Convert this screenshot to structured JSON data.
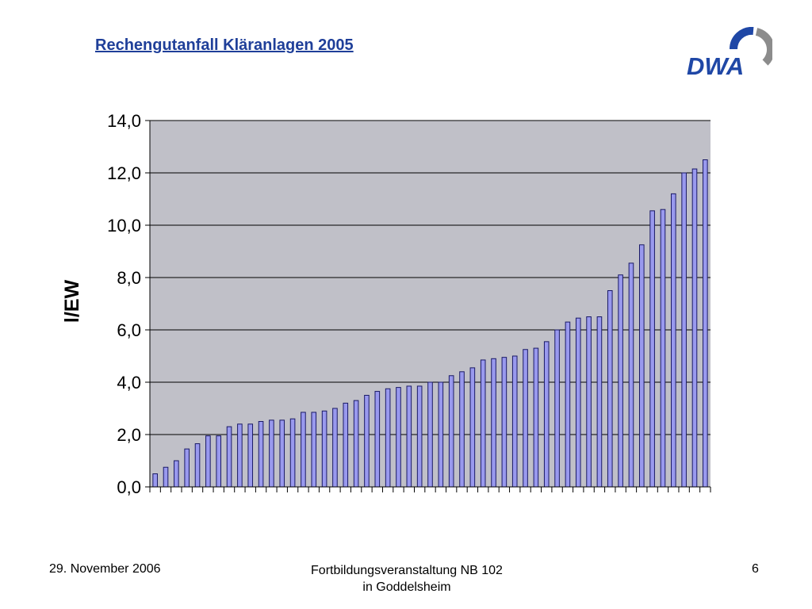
{
  "slide": {
    "title": "Rechengutanfall Kläranlagen 2005",
    "logo_text": "DWA",
    "footer_date": "29. November 2006",
    "footer_event_line1": "Fortbildungsveranstaltung NB 102",
    "footer_event_line2": "in Goddelsheim",
    "page_number": "6"
  },
  "colors": {
    "title": "#1f3f99",
    "logo_blue": "#1f47a6",
    "logo_gray": "#8c8c8c",
    "plot_background": "#c0c0c8",
    "bar_fill": "#9999ee",
    "bar_stroke": "#1a1a66",
    "gridline": "#000000"
  },
  "chart_data": {
    "type": "bar",
    "title": "",
    "xlabel": "",
    "ylabel": "l/EW",
    "ylim": [
      0,
      14
    ],
    "ytick_labels": [
      "0,0",
      "2,0",
      "4,0",
      "6,0",
      "8,0",
      "10,0",
      "12,0",
      "14,0"
    ],
    "grid": true,
    "legend": "none",
    "values": [
      0.5,
      0.75,
      1.0,
      1.45,
      1.65,
      1.95,
      1.95,
      2.3,
      2.4,
      2.4,
      2.5,
      2.55,
      2.55,
      2.6,
      2.85,
      2.85,
      2.9,
      3.0,
      3.2,
      3.3,
      3.5,
      3.65,
      3.75,
      3.8,
      3.85,
      3.85,
      4.0,
      4.0,
      4.25,
      4.4,
      4.55,
      4.85,
      4.9,
      4.95,
      5.0,
      5.25,
      5.3,
      5.55,
      6.0,
      6.3,
      6.45,
      6.5,
      6.5,
      7.5,
      8.1,
      8.55,
      9.25,
      10.55,
      10.6,
      11.2,
      12.0,
      12.15,
      12.5
    ]
  }
}
